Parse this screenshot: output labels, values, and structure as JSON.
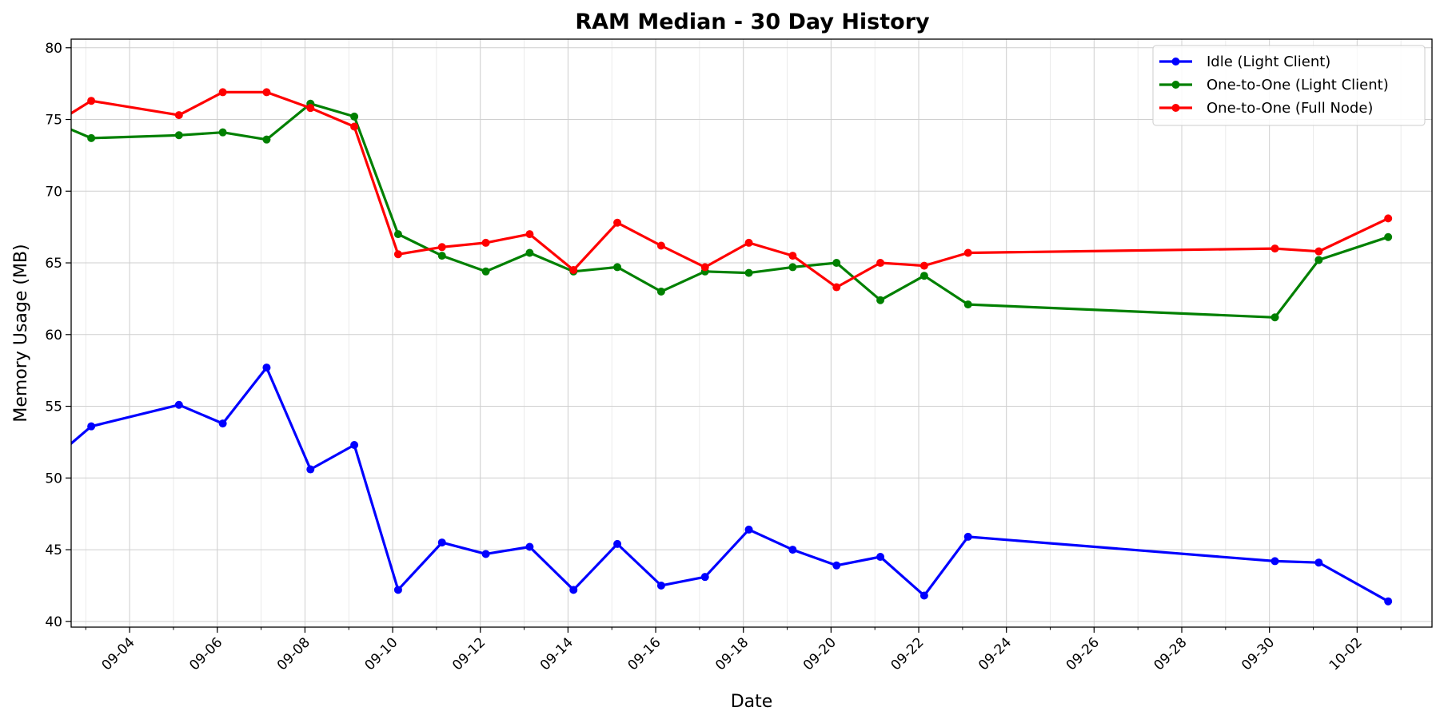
{
  "chart_data": {
    "type": "line",
    "title": "RAM Median - 30 Day History",
    "xlabel": "Date",
    "ylabel": "Memory Usage (MB)",
    "ylim": [
      39.6,
      80.6
    ],
    "xlim": [
      "2025-09-02T16:00",
      "2025-10-03T17:00"
    ],
    "yticks": [
      40,
      45,
      50,
      55,
      60,
      65,
      70,
      75,
      80
    ],
    "xticks": [
      "2025-09-04",
      "2025-09-06",
      "2025-09-08",
      "2025-09-10",
      "2025-09-12",
      "2025-09-14",
      "2025-09-16",
      "2025-09-18",
      "2025-09-20",
      "2025-09-22",
      "2025-09-24",
      "2025-09-26",
      "2025-09-28",
      "2025-09-30",
      "2025-10-02"
    ],
    "xtick_labels": [
      "09-04",
      "09-06",
      "09-08",
      "09-10",
      "09-12",
      "09-14",
      "09-16",
      "09-18",
      "09-20",
      "09-22",
      "09-24",
      "09-26",
      "09-28",
      "09-30",
      "10-02"
    ],
    "grid": true,
    "legend_position": "top-right",
    "series": [
      {
        "name": "Idle (Light Client)",
        "color": "#0000ff",
        "x": [
          "2025-09-02T03:00",
          "2025-09-03T03:00",
          "2025-09-05T03:00",
          "2025-09-06T03:00",
          "2025-09-07T03:00",
          "2025-09-08T03:00",
          "2025-09-09T03:00",
          "2025-09-10T03:00",
          "2025-09-11T03:00",
          "2025-09-12T03:00",
          "2025-09-13T03:00",
          "2025-09-14T03:00",
          "2025-09-15T03:00",
          "2025-09-16T03:00",
          "2025-09-17T03:00",
          "2025-09-18T03:00",
          "2025-09-19T03:00",
          "2025-09-20T03:00",
          "2025-09-21T03:00",
          "2025-09-22T03:00",
          "2025-09-23T03:00",
          "2025-09-30T03:00",
          "2025-10-01T03:00",
          "2025-10-02T17:00"
        ],
        "y": [
          51.0,
          53.6,
          55.1,
          53.8,
          57.7,
          50.6,
          52.3,
          42.2,
          45.5,
          44.7,
          45.2,
          42.2,
          45.4,
          42.5,
          43.1,
          46.4,
          45.0,
          43.9,
          44.5,
          41.8,
          45.9,
          44.2,
          44.1,
          41.4
        ]
      },
      {
        "name": "One-to-One (Light Client)",
        "color": "#008000",
        "x": [
          "2025-09-02T03:00",
          "2025-09-03T03:00",
          "2025-09-05T03:00",
          "2025-09-06T03:00",
          "2025-09-07T03:00",
          "2025-09-08T03:00",
          "2025-09-09T03:00",
          "2025-09-10T03:00",
          "2025-09-11T03:00",
          "2025-09-12T03:00",
          "2025-09-13T03:00",
          "2025-09-14T03:00",
          "2025-09-15T03:00",
          "2025-09-16T03:00",
          "2025-09-17T03:00",
          "2025-09-18T03:00",
          "2025-09-19T03:00",
          "2025-09-20T03:00",
          "2025-09-21T03:00",
          "2025-09-22T03:00",
          "2025-09-23T03:00",
          "2025-09-30T03:00",
          "2025-10-01T03:00",
          "2025-10-02T17:00"
        ],
        "y": [
          75.0,
          73.7,
          73.9,
          74.1,
          73.6,
          76.1,
          75.2,
          67.0,
          65.5,
          64.4,
          65.7,
          64.4,
          64.7,
          63.0,
          64.4,
          64.3,
          64.7,
          65.0,
          62.4,
          64.1,
          62.1,
          61.2,
          65.2,
          66.8
        ]
      },
      {
        "name": "One-to-One (Full Node)",
        "color": "#ff0000",
        "x": [
          "2025-09-02T03:00",
          "2025-09-03T03:00",
          "2025-09-05T03:00",
          "2025-09-06T03:00",
          "2025-09-07T03:00",
          "2025-09-08T03:00",
          "2025-09-09T03:00",
          "2025-09-10T03:00",
          "2025-09-11T03:00",
          "2025-09-12T03:00",
          "2025-09-13T03:00",
          "2025-09-14T03:00",
          "2025-09-15T03:00",
          "2025-09-16T03:00",
          "2025-09-17T03:00",
          "2025-09-18T03:00",
          "2025-09-19T03:00",
          "2025-09-20T03:00",
          "2025-09-21T03:00",
          "2025-09-22T03:00",
          "2025-09-23T03:00",
          "2025-09-30T03:00",
          "2025-10-01T03:00",
          "2025-10-02T17:00"
        ],
        "y": [
          74.4,
          76.3,
          75.3,
          76.9,
          76.9,
          75.8,
          74.5,
          65.6,
          66.1,
          66.4,
          67.0,
          64.5,
          67.8,
          66.2,
          64.7,
          66.4,
          65.5,
          63.3,
          65.0,
          64.8,
          65.7,
          66.0,
          65.8,
          68.1
        ]
      }
    ]
  }
}
